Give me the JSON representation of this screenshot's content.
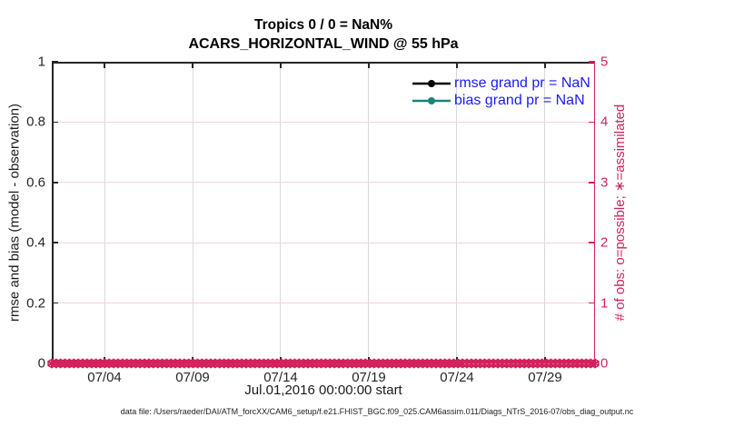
{
  "title": {
    "line1": "Tropics 0 / 0 = NaN%",
    "line2": "ACARS_HORIZONTAL_WIND @ 55 hPa"
  },
  "axes": {
    "left": {
      "label": "rmse and bias (model - observation)",
      "tick_labels": [
        "0",
        "0.2",
        "0.4",
        "0.6",
        "0.8",
        "1"
      ],
      "color": "#262626"
    },
    "right": {
      "label": "# of obs: o=possible; ∗=assimilated",
      "tick_labels": [
        "0",
        "1",
        "2",
        "3",
        "4",
        "5"
      ],
      "color": "#d3215d"
    },
    "x": {
      "label": "Jul.01,2016 00:00:00 start",
      "tick_labels": [
        "07/04",
        "07/09",
        "07/14",
        "07/19",
        "07/24",
        "07/29"
      ]
    }
  },
  "legend": {
    "text_color": "#1a1aff",
    "entries": [
      {
        "label": "rmse grand pr = NaN",
        "color": "#000000"
      },
      {
        "label": "bias grand pr = NaN",
        "color": "#17857d"
      }
    ]
  },
  "grid": {
    "vertical_color": "#d9d9d9",
    "horizontal_color": "#f5d3de"
  },
  "obs_band": {
    "color": "#d3215d",
    "marker_count": 124
  },
  "footer": "data file: /Users/raeder/DAI/ATM_forcXX/CAM6_setup/f.e21.FHIST_BGC.f09_025.CAM6assim.011/Diags_NTrS_2016-07/obs_diag_output.nc",
  "chart_data": {
    "type": "line",
    "title": "Tropics 0 / 0 = NaN%",
    "subtitle": "ACARS_HORIZONTAL_WIND @ 55 hPa",
    "xlabel": "Jul.01,2016 00:00:00 start",
    "ylabel_left": "rmse and bias (model - observation)",
    "ylabel_right": "# of obs: o=possible; ∗=assimilated",
    "x_range": [
      "2016-07-01 00:00",
      "2016-08-01 00:00"
    ],
    "x_tick_labels": [
      "07/04",
      "07/09",
      "07/14",
      "07/19",
      "07/24",
      "07/29"
    ],
    "ylim_left": [
      0,
      1
    ],
    "ylim_right": [
      0,
      5
    ],
    "grid": true,
    "legend_position": "upper-right-inside, no box",
    "series": [
      {
        "name": "rmse grand pr = NaN",
        "axis": "left",
        "color": "#000000",
        "marker": "filled-circle",
        "values": "all NaN - nothing plotted"
      },
      {
        "name": "bias grand pr = NaN",
        "axis": "left",
        "color": "#17857d",
        "marker": "filled-circle",
        "values": "all NaN - nothing plotted"
      },
      {
        "name": "# of obs possible (o)",
        "axis": "right",
        "color": "#d3215d",
        "marker": "o",
        "constant_value": 0,
        "note": "dense markers every 6 h from 07/01 through 07/31, all at 0"
      },
      {
        "name": "# of obs assimilated (∗)",
        "axis": "right",
        "color": "#d3215d",
        "marker": "∗",
        "constant_value": 0,
        "note": "dense markers every 6 h from 07/01 through 07/31, all at 0"
      }
    ],
    "summary_stat": "0 / 0 = NaN%"
  }
}
